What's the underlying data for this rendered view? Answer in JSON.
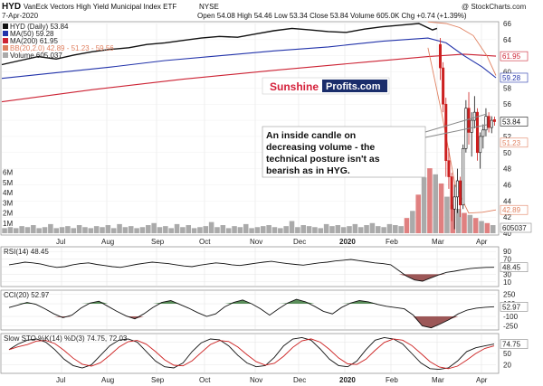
{
  "header": {
    "ticker": "HYD",
    "name": "VanEck Vectors High Yield Municipal Index ETF",
    "exchange": "NYSE",
    "date": "7-Apr-2020",
    "quote": "Open 54.08 High 54.46 Low 53.34 Close 53.84 Volume 605.0K Chg +0.74 (+1.39%)",
    "watermark": "@ StockCharts.com"
  },
  "brand": {
    "part1": "Sunshine",
    "part2": "Profits.com",
    "color1": "#d4203a",
    "color2": "#1a2d6b"
  },
  "annotation": "An inside candle on decreasing volume - the technical posture isn't as bearish as in HYG.",
  "colors": {
    "up": "#111111",
    "down": "#cc1f1f",
    "ma50": "#2233aa",
    "ma200": "#cc2233",
    "bb": "#e08060",
    "volume": "#aaaaaa",
    "vol_down": "#e08080",
    "indicator_fill_pos": "#3d7a3d",
    "indicator_fill_neg": "#8b3a3a"
  },
  "chart_data": {
    "type": "candlestick",
    "x_labels": [
      "Jul",
      "Aug",
      "Sep",
      "Oct",
      "Nov",
      "Dec",
      "2020",
      "Feb",
      "Mar",
      "Apr"
    ],
    "price_panel": {
      "title": "HYD (Daily) 53.84",
      "legend": [
        "HYD (Daily) 53.84",
        "MA(50) 59.28",
        "MA(200) 61.95",
        "BB(20,2.0) 42.89 - 51.23 - 59.56",
        "Volume 605,037"
      ],
      "y_ticks": [
        40,
        42,
        44,
        46,
        48,
        50,
        52,
        54,
        56,
        58,
        60,
        62,
        64,
        66
      ],
      "ylim": [
        40,
        66
      ],
      "labels_right": [
        "61.95",
        "59.28",
        "53.84",
        "51.23",
        "42.89",
        "605037"
      ],
      "volume_ticks": [
        "1M",
        "2M",
        "3M",
        "4M",
        "5M",
        "6M"
      ],
      "pre_march_trend": [
        [
          0,
          60.9
        ],
        [
          20,
          61.4
        ],
        [
          40,
          61.9
        ],
        [
          60,
          61.6
        ],
        [
          80,
          62.1
        ],
        [
          100,
          62.5
        ],
        [
          120,
          62.8
        ],
        [
          140,
          63.0
        ],
        [
          160,
          63.4
        ],
        [
          180,
          63.6
        ],
        [
          200,
          63.9
        ],
        [
          220,
          64.2
        ],
        [
          240,
          64.4
        ],
        [
          260,
          64.3
        ],
        [
          280,
          64.7
        ],
        [
          300,
          65.1
        ],
        [
          320,
          65.4
        ],
        [
          340,
          65.2
        ],
        [
          360,
          65.0
        ],
        [
          380,
          64.9
        ],
        [
          400,
          65.3
        ],
        [
          420,
          65.6
        ],
        [
          440,
          65.8
        ],
        [
          460,
          66.0
        ],
        [
          475,
          65.2
        ],
        [
          480,
          65.4
        ]
      ],
      "march_candles": [
        {
          "o": 63.4,
          "h": 64.2,
          "l": 59.0,
          "c": 60.5
        },
        {
          "o": 60.5,
          "h": 61.2,
          "l": 55.0,
          "c": 56.0
        },
        {
          "o": 56.0,
          "h": 56.8,
          "l": 47.0,
          "c": 49.0
        },
        {
          "o": 49.0,
          "h": 50.5,
          "l": 45.5,
          "c": 47.0
        },
        {
          "o": 47.0,
          "h": 47.5,
          "l": 41.5,
          "c": 43.0
        },
        {
          "o": 43.0,
          "h": 46.0,
          "l": 40.5,
          "c": 44.5
        },
        {
          "o": 44.5,
          "h": 48.0,
          "l": 42.5,
          "c": 46.5
        },
        {
          "o": 46.5,
          "h": 47.0,
          "l": 42.0,
          "c": 43.5
        },
        {
          "o": 43.5,
          "h": 51.0,
          "l": 43.0,
          "c": 50.5
        },
        {
          "o": 50.5,
          "h": 56.5,
          "l": 50.0,
          "c": 55.5
        },
        {
          "o": 55.5,
          "h": 57.5,
          "l": 51.0,
          "c": 52.5
        },
        {
          "o": 52.5,
          "h": 55.0,
          "l": 49.5,
          "c": 54.0
        },
        {
          "o": 54.0,
          "h": 57.0,
          "l": 53.0,
          "c": 55.0
        },
        {
          "o": 55.0,
          "h": 55.5,
          "l": 49.0,
          "c": 50.0
        },
        {
          "o": 50.0,
          "h": 52.5,
          "l": 48.0,
          "c": 52.0
        },
        {
          "o": 52.0,
          "h": 53.5,
          "l": 50.5,
          "c": 52.8
        },
        {
          "o": 52.8,
          "h": 55.5,
          "l": 52.0,
          "c": 54.5
        },
        {
          "o": 54.5,
          "h": 55.0,
          "l": 52.5,
          "c": 53.1
        },
        {
          "o": 53.1,
          "h": 54.5,
          "l": 52.4,
          "c": 54.0
        },
        {
          "o": 54.08,
          "h": 54.46,
          "l": 53.34,
          "c": 53.84
        }
      ],
      "ma50": [
        [
          0,
          59.2
        ],
        [
          60,
          59.9
        ],
        [
          120,
          60.6
        ],
        [
          180,
          61.4
        ],
        [
          240,
          62.0
        ],
        [
          300,
          62.6
        ],
        [
          360,
          63.1
        ],
        [
          420,
          63.8
        ],
        [
          470,
          64.2
        ],
        [
          490,
          63.6
        ],
        [
          510,
          62.0
        ],
        [
          530,
          60.6
        ],
        [
          545,
          59.28
        ]
      ],
      "ma200": [
        [
          0,
          56.3
        ],
        [
          100,
          57.8
        ],
        [
          200,
          59.1
        ],
        [
          300,
          60.2
        ],
        [
          400,
          61.2
        ],
        [
          470,
          61.9
        ],
        [
          510,
          62.2
        ],
        [
          545,
          61.95
        ]
      ],
      "bb_upper": [
        [
          470,
          66.2
        ],
        [
          490,
          66.0
        ],
        [
          505,
          65.5
        ],
        [
          520,
          64.5
        ],
        [
          535,
          62.0
        ],
        [
          545,
          59.56
        ]
      ],
      "bb_lower": [
        [
          470,
          63.0
        ],
        [
          485,
          55.0
        ],
        [
          500,
          46.0
        ],
        [
          515,
          42.5
        ],
        [
          530,
          42.6
        ],
        [
          545,
          42.89
        ]
      ],
      "volume": [
        0.5,
        0.6,
        0.5,
        0.7,
        0.6,
        0.8,
        0.5,
        0.6,
        0.9,
        0.5,
        0.6,
        0.7,
        0.5,
        0.8,
        0.6,
        0.5,
        0.7,
        0.6,
        0.8,
        0.5,
        0.9,
        0.6,
        0.7,
        0.5,
        0.6,
        0.8,
        1.0,
        0.6,
        0.7,
        0.5,
        0.9,
        0.6,
        0.8,
        0.5,
        0.6,
        0.7,
        1.1,
        0.6,
        0.8,
        0.5,
        0.7,
        0.6,
        0.9,
        0.5,
        0.6,
        0.7,
        0.8,
        0.6,
        0.5,
        0.7,
        1.2,
        0.6,
        0.8,
        0.7,
        0.6,
        0.5,
        0.9,
        0.7,
        0.8,
        0.6,
        0.7,
        0.9,
        0.6,
        0.8,
        1.0,
        0.7,
        0.6,
        0.9,
        0.8,
        0.7,
        1.5,
        2.2,
        3.8,
        5.5,
        6.4,
        5.8,
        4.9,
        3.6,
        2.8,
        2.4,
        2.0,
        1.8,
        1.5,
        1.2,
        1.0,
        0.8
      ]
    },
    "rsi_panel": {
      "title": "RSI(14) 48.45",
      "y_ticks": [
        10,
        30,
        50,
        70,
        90
      ],
      "ylim": [
        0,
        100
      ],
      "current": "48.45",
      "values": [
        55,
        58,
        62,
        60,
        57,
        52,
        48,
        50,
        55,
        58,
        60,
        56,
        53,
        50,
        48,
        52,
        56,
        59,
        62,
        60,
        58,
        55,
        52,
        50,
        54,
        57,
        60,
        58,
        55,
        53,
        56,
        59,
        62,
        64,
        61,
        58,
        56,
        54,
        57,
        60,
        62,
        65,
        67,
        69,
        66,
        63,
        60,
        58,
        55,
        40,
        25,
        15,
        12,
        20,
        28,
        35,
        38,
        42,
        45,
        47,
        48,
        48.45
      ]
    },
    "cci_panel": {
      "title": "CCI(20) 52.97",
      "y_ticks": [
        -250,
        -100,
        100,
        250
      ],
      "ylim": [
        -300,
        300
      ],
      "current": "52.97",
      "values": [
        40,
        80,
        120,
        90,
        20,
        -60,
        -120,
        -80,
        30,
        110,
        140,
        60,
        -20,
        -90,
        -140,
        -60,
        40,
        120,
        150,
        90,
        30,
        -40,
        -100,
        -60,
        50,
        120,
        160,
        100,
        20,
        -80,
        20,
        110,
        170,
        130,
        60,
        -20,
        -60,
        40,
        110,
        150,
        130,
        90,
        60,
        40,
        20,
        -80,
        -250,
        -280,
        -220,
        -150,
        -60,
        0,
        30,
        45,
        52.97
      ]
    },
    "sto_panel": {
      "title": "Slow STO %K(14) %D(3) 74.75, 72.03",
      "y_ticks": [
        20,
        50,
        80
      ],
      "ylim": [
        0,
        100
      ],
      "current_k": "74.75",
      "current_d": "72.03",
      "k_values": [
        60,
        75,
        85,
        88,
        80,
        60,
        35,
        18,
        12,
        20,
        45,
        70,
        85,
        88,
        80,
        55,
        30,
        15,
        12,
        25,
        55,
        78,
        88,
        86,
        70,
        45,
        25,
        15,
        18,
        40,
        70,
        88,
        92,
        85,
        62,
        35,
        18,
        15,
        30,
        60,
        85,
        92,
        88,
        75,
        50,
        25,
        10,
        8,
        12,
        30,
        55,
        65,
        70,
        74.75
      ]
    },
    "grid": true
  }
}
